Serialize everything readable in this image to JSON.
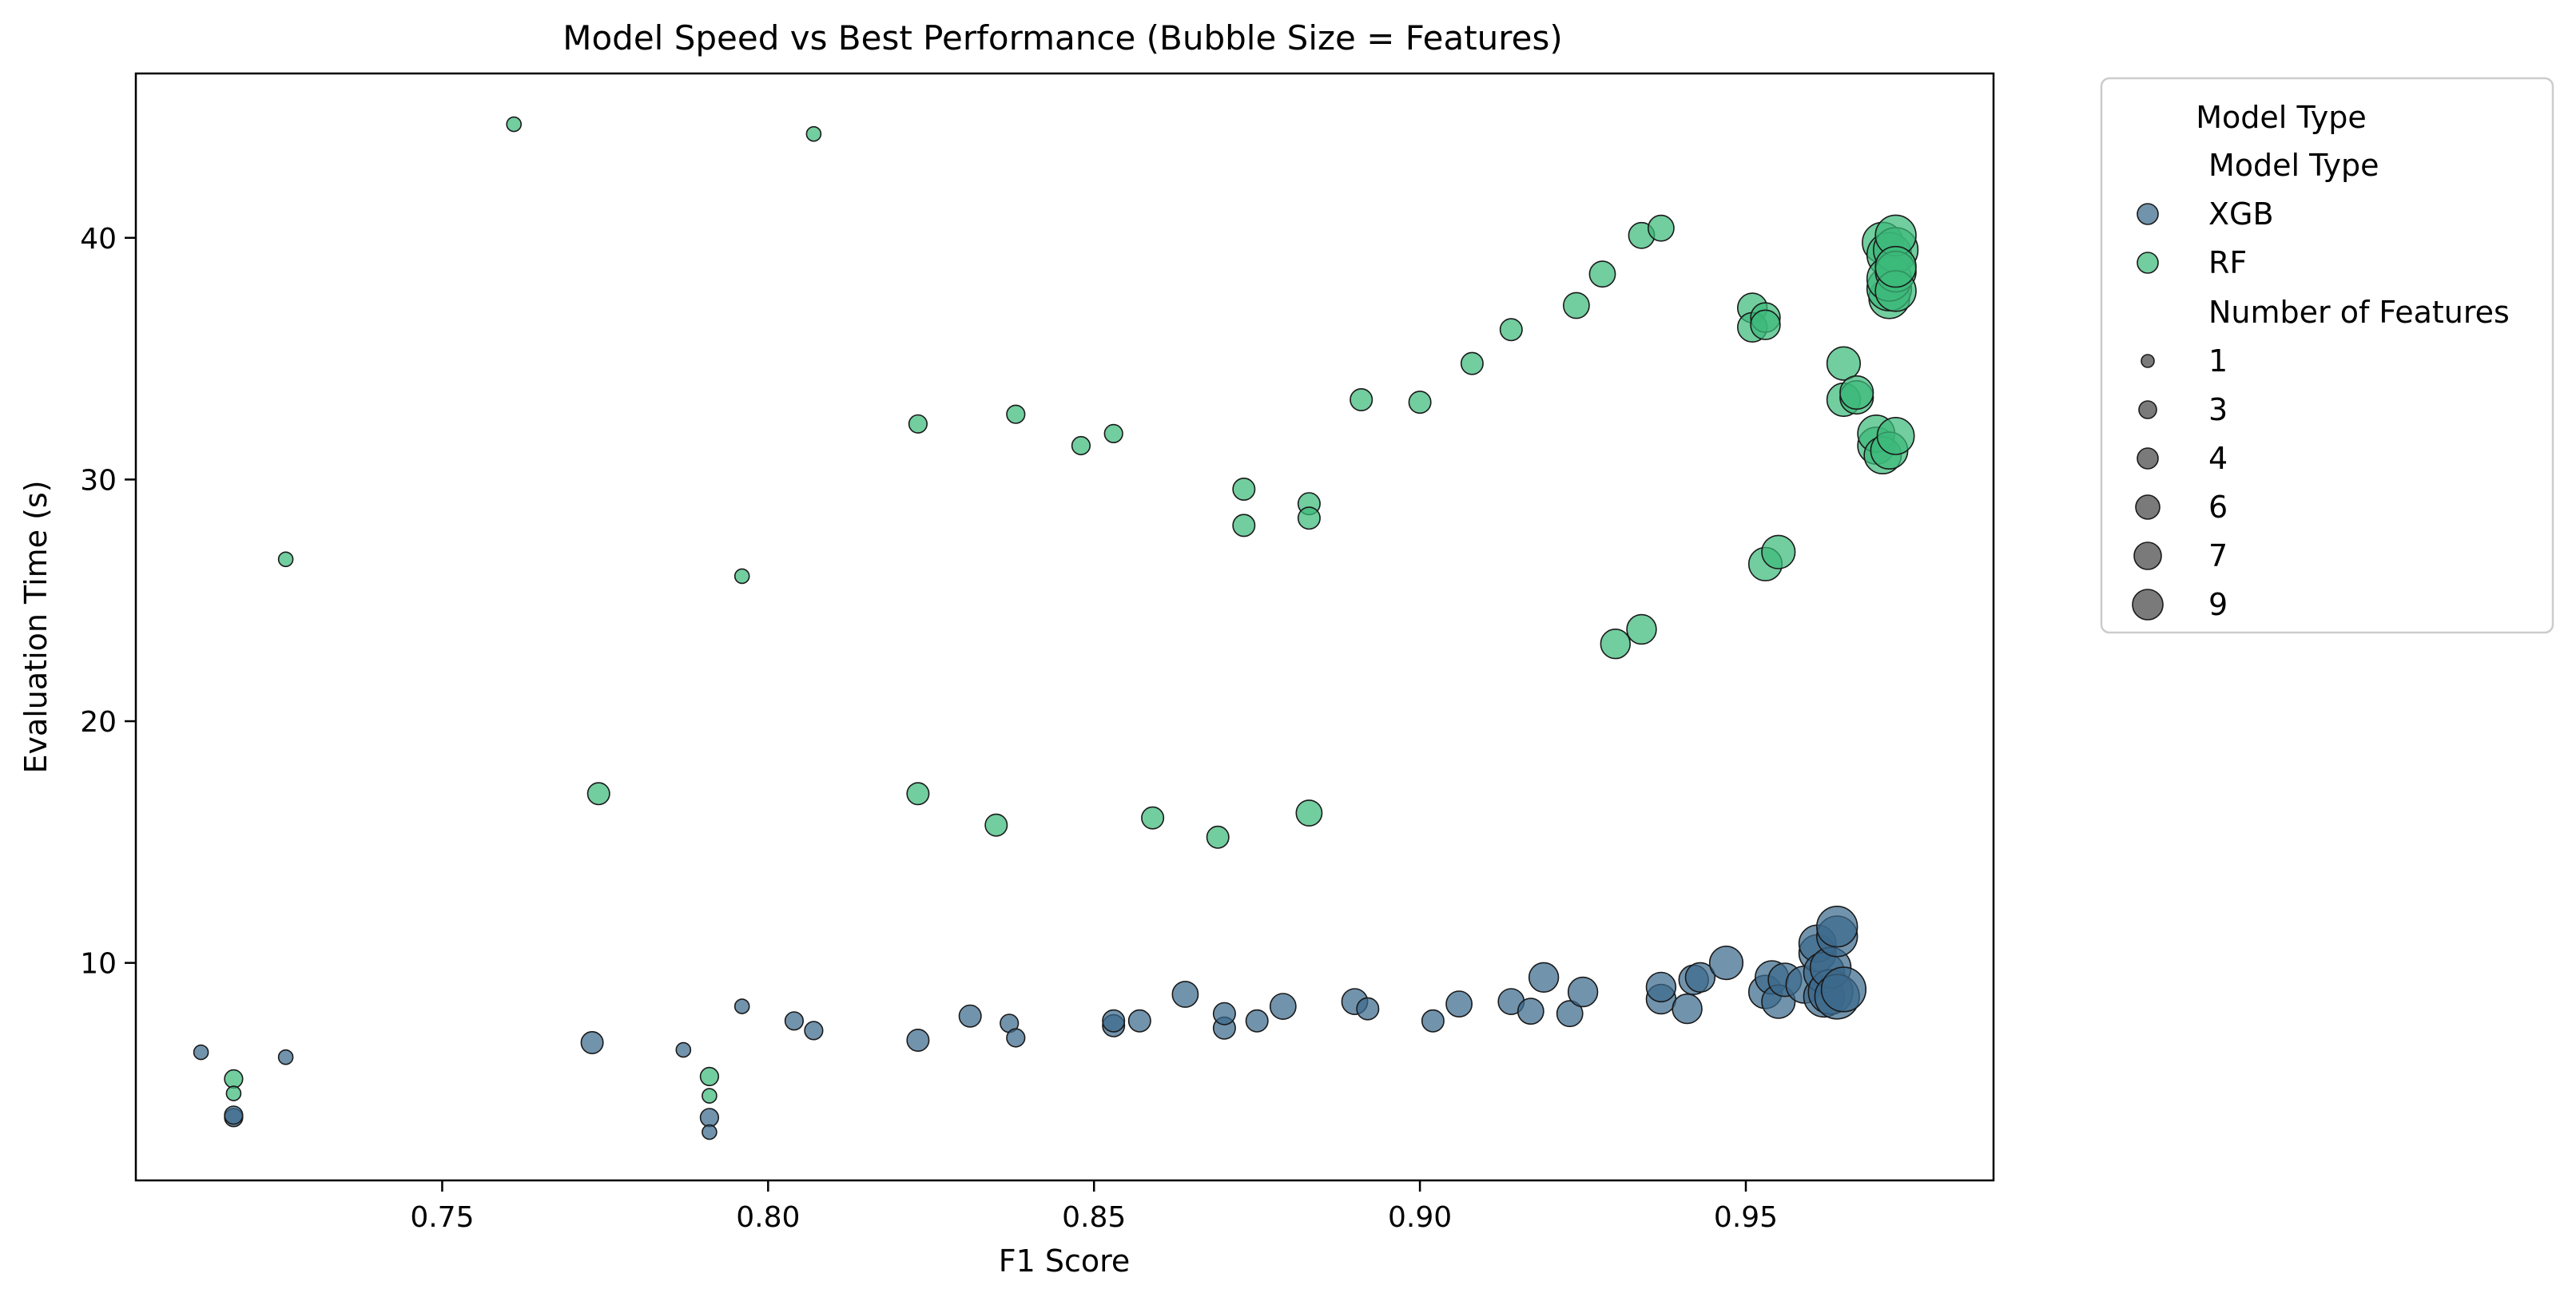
{
  "chart_data": {
    "type": "scatter",
    "title": "Model Speed vs Best Performance (Bubble Size = Features)",
    "xlabel": "F1 Score",
    "ylabel": "Evaluation Time (s)",
    "xlim": [
      0.703,
      0.988
    ],
    "ylim": [
      1.0,
      46.8
    ],
    "xticks": [
      0.75,
      0.8,
      0.85,
      0.9,
      0.95
    ],
    "xtick_labels": [
      "0.75",
      "0.80",
      "0.85",
      "0.90",
      "0.95"
    ],
    "yticks": [
      10,
      20,
      30,
      40
    ],
    "ytick_labels": [
      "10",
      "20",
      "30",
      "40"
    ],
    "grid": false,
    "legend": {
      "placement": "outside-right",
      "title": "Model Type",
      "hue_title": "Model Type",
      "size_title": "Number of Features",
      "hue_entries": [
        {
          "label": "XGB",
          "color": "#3b6a8c"
        },
        {
          "label": "RF",
          "color": "#3cba7a"
        }
      ],
      "size_entries": [
        "1",
        "3",
        "4",
        "6",
        "7",
        "9"
      ]
    },
    "series": [
      {
        "name": "XGB",
        "color": "#3b6a8c",
        "points": [
          [
            0.713,
            6.3,
            1
          ],
          [
            0.718,
            3.6,
            2
          ],
          [
            0.718,
            3.7,
            2
          ],
          [
            0.726,
            6.1,
            1
          ],
          [
            0.773,
            6.7,
            3
          ],
          [
            0.787,
            6.4,
            1
          ],
          [
            0.791,
            3.6,
            2
          ],
          [
            0.791,
            3.0,
            1
          ],
          [
            0.796,
            8.2,
            1
          ],
          [
            0.804,
            7.6,
            2
          ],
          [
            0.807,
            7.2,
            2
          ],
          [
            0.823,
            6.8,
            3
          ],
          [
            0.831,
            7.8,
            3
          ],
          [
            0.837,
            7.5,
            2
          ],
          [
            0.838,
            6.9,
            2
          ],
          [
            0.853,
            7.4,
            3
          ],
          [
            0.853,
            7.6,
            3
          ],
          [
            0.857,
            7.6,
            3
          ],
          [
            0.864,
            8.7,
            4
          ],
          [
            0.87,
            7.3,
            3
          ],
          [
            0.87,
            7.9,
            3
          ],
          [
            0.875,
            7.6,
            3
          ],
          [
            0.879,
            8.2,
            4
          ],
          [
            0.89,
            8.4,
            4
          ],
          [
            0.892,
            8.1,
            3
          ],
          [
            0.902,
            7.6,
            3
          ],
          [
            0.906,
            8.3,
            4
          ],
          [
            0.914,
            8.4,
            4
          ],
          [
            0.917,
            8.0,
            4
          ],
          [
            0.919,
            9.4,
            5
          ],
          [
            0.923,
            7.9,
            4
          ],
          [
            0.925,
            8.8,
            5
          ],
          [
            0.937,
            8.5,
            5
          ],
          [
            0.937,
            9.0,
            5
          ],
          [
            0.941,
            8.1,
            5
          ],
          [
            0.942,
            9.3,
            5
          ],
          [
            0.943,
            9.4,
            5
          ],
          [
            0.947,
            10.0,
            6
          ],
          [
            0.953,
            8.8,
            6
          ],
          [
            0.954,
            9.4,
            6
          ],
          [
            0.955,
            8.4,
            6
          ],
          [
            0.956,
            9.3,
            6
          ],
          [
            0.959,
            9.1,
            7
          ],
          [
            0.961,
            10.4,
            7
          ],
          [
            0.961,
            10.8,
            7
          ],
          [
            0.962,
            8.6,
            8
          ],
          [
            0.962,
            9.6,
            8
          ],
          [
            0.963,
            8.8,
            9
          ],
          [
            0.963,
            9.8,
            8
          ],
          [
            0.964,
            11.1,
            8
          ],
          [
            0.964,
            11.5,
            8
          ],
          [
            0.964,
            8.6,
            9
          ],
          [
            0.965,
            8.9,
            9
          ]
        ]
      },
      {
        "name": "RF",
        "color": "#3cba7a",
        "points": [
          [
            0.718,
            5.2,
            2
          ],
          [
            0.718,
            4.6,
            1
          ],
          [
            0.726,
            26.7,
            1
          ],
          [
            0.761,
            44.7,
            1
          ],
          [
            0.774,
            17.0,
            3
          ],
          [
            0.791,
            5.3,
            2
          ],
          [
            0.791,
            4.5,
            1
          ],
          [
            0.796,
            26.0,
            1
          ],
          [
            0.807,
            44.3,
            1
          ],
          [
            0.823,
            32.3,
            2
          ],
          [
            0.823,
            17.0,
            3
          ],
          [
            0.835,
            15.7,
            3
          ],
          [
            0.838,
            32.7,
            2
          ],
          [
            0.848,
            31.4,
            2
          ],
          [
            0.853,
            31.9,
            2
          ],
          [
            0.859,
            16.0,
            3
          ],
          [
            0.869,
            15.2,
            3
          ],
          [
            0.873,
            29.6,
            3
          ],
          [
            0.873,
            28.1,
            3
          ],
          [
            0.883,
            16.2,
            4
          ],
          [
            0.883,
            29.0,
            3
          ],
          [
            0.883,
            28.4,
            3
          ],
          [
            0.891,
            33.3,
            3
          ],
          [
            0.9,
            33.2,
            3
          ],
          [
            0.908,
            34.8,
            3
          ],
          [
            0.914,
            36.2,
            3
          ],
          [
            0.924,
            37.2,
            4
          ],
          [
            0.928,
            38.5,
            4
          ],
          [
            0.93,
            23.2,
            5
          ],
          [
            0.934,
            23.8,
            5
          ],
          [
            0.934,
            40.1,
            4
          ],
          [
            0.937,
            40.4,
            4
          ],
          [
            0.951,
            37.1,
            5
          ],
          [
            0.951,
            36.3,
            5
          ],
          [
            0.953,
            36.7,
            5
          ],
          [
            0.953,
            36.4,
            5
          ],
          [
            0.953,
            26.5,
            6
          ],
          [
            0.955,
            27.0,
            6
          ],
          [
            0.965,
            34.8,
            6
          ],
          [
            0.965,
            33.3,
            6
          ],
          [
            0.967,
            33.4,
            6
          ],
          [
            0.967,
            33.6,
            6
          ],
          [
            0.97,
            31.4,
            7
          ],
          [
            0.97,
            31.9,
            7
          ],
          [
            0.971,
            31.0,
            7
          ],
          [
            0.971,
            39.8,
            8
          ],
          [
            0.972,
            31.2,
            7
          ],
          [
            0.972,
            39.3,
            9
          ],
          [
            0.972,
            37.5,
            8
          ],
          [
            0.972,
            37.9,
            9
          ],
          [
            0.972,
            38.3,
            9
          ],
          [
            0.973,
            39.5,
            9
          ],
          [
            0.973,
            40.1,
            8
          ],
          [
            0.973,
            31.8,
            7
          ],
          [
            0.973,
            38.6,
            8
          ],
          [
            0.973,
            37.8,
            8
          ],
          [
            0.973,
            38.8,
            8
          ]
        ]
      }
    ]
  }
}
